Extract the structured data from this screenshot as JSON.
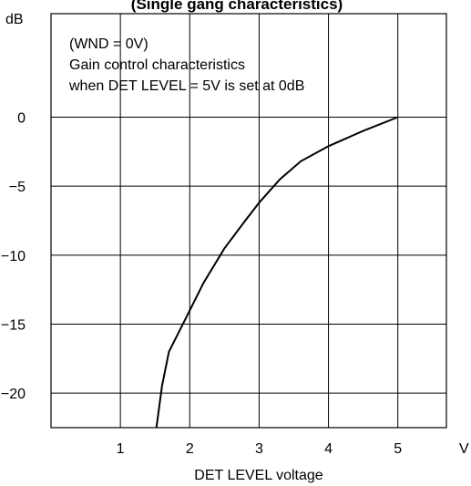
{
  "chart_data": {
    "type": "line",
    "title": "(Single gang characteristics)",
    "xlabel": "DET LEVEL voltage",
    "ylabel": "dB",
    "x_unit_label": "V",
    "xlim": [
      0,
      5.7
    ],
    "ylim": [
      -22.5,
      7.5
    ],
    "x_ticks": [
      1,
      2,
      3,
      4,
      5
    ],
    "y_ticks": [
      0,
      -5,
      -10,
      -15,
      -20
    ],
    "x_tick_labels": [
      "1",
      "2",
      "3",
      "4",
      "5"
    ],
    "y_tick_labels": [
      "0",
      "−5",
      "−10",
      "−15",
      "−20"
    ],
    "grid": true,
    "annotation_lines": [
      "(WND = 0V)",
      "Gain control characteristics",
      "when DET LEVEL = 5V is set at 0dB"
    ],
    "series": [
      {
        "x": [
          1.52,
          1.6,
          1.7,
          1.85,
          2.0,
          2.2,
          2.5,
          2.8,
          3.0,
          3.3,
          3.6,
          4.0,
          4.5,
          5.0
        ],
        "y": [
          -22.5,
          -19.5,
          -17.0,
          -15.5,
          -14.0,
          -12.0,
          -9.5,
          -7.5,
          -6.2,
          -4.5,
          -3.2,
          -2.1,
          -1.0,
          0.0
        ]
      }
    ]
  }
}
